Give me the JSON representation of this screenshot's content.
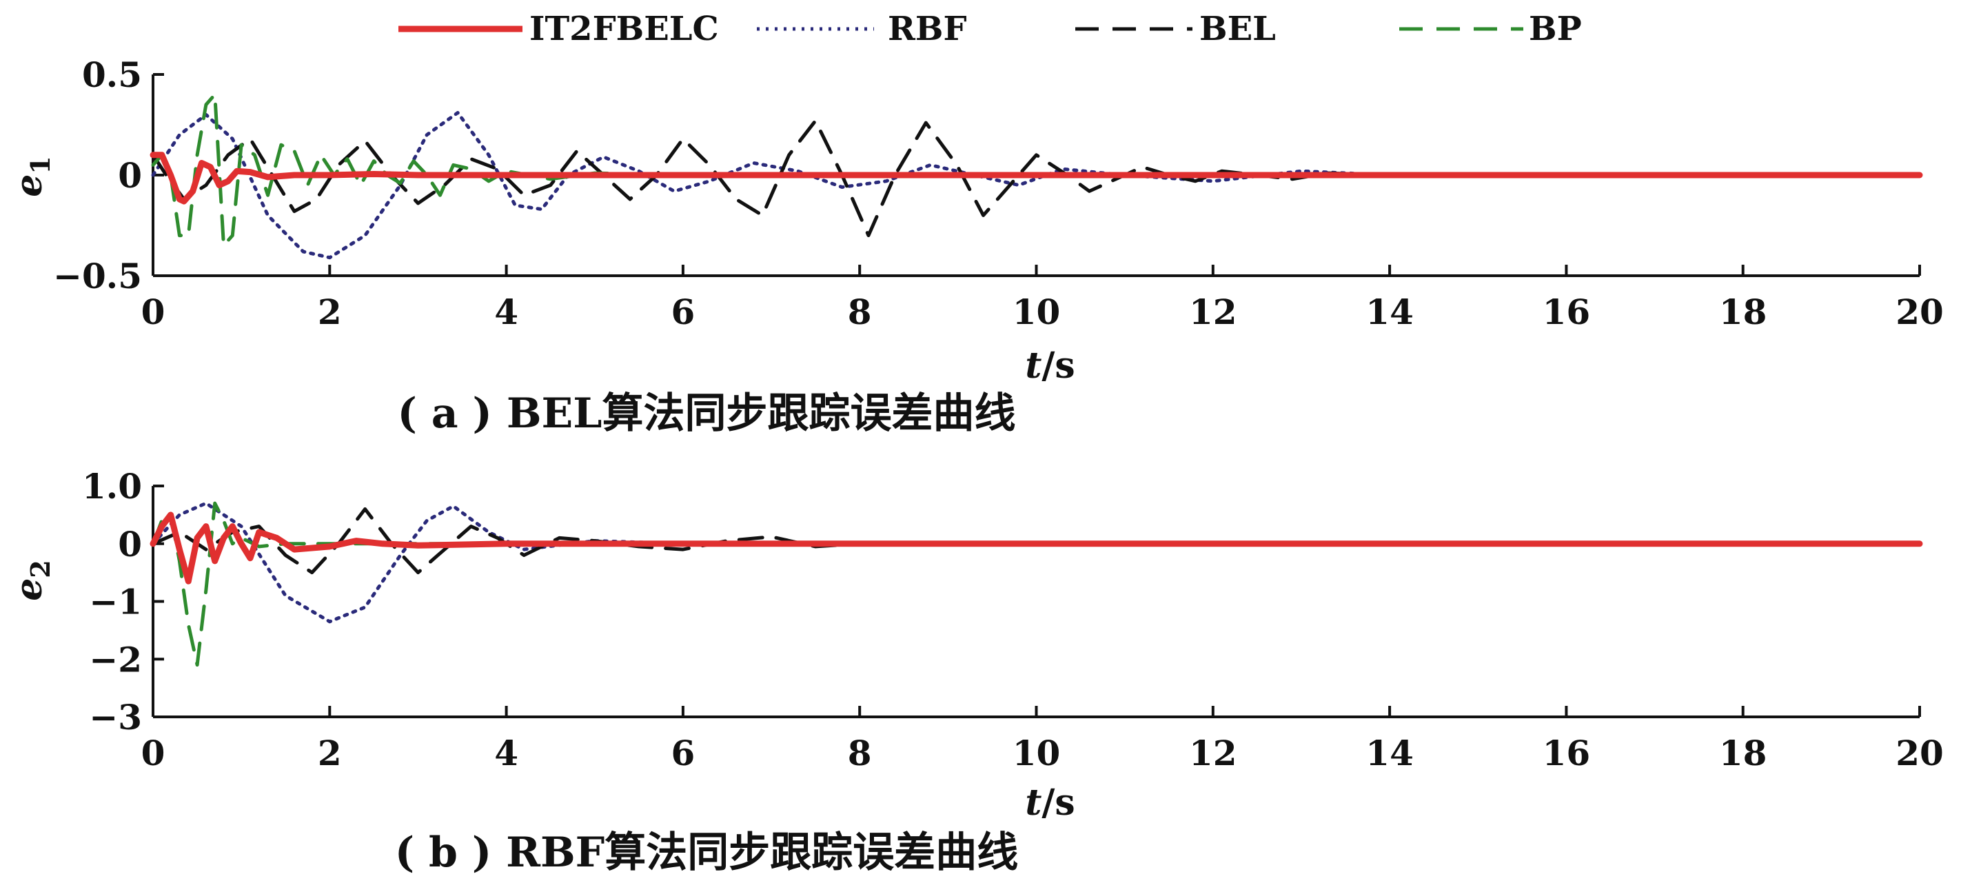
{
  "legend": {
    "items": [
      {
        "label": "IT2FBELC",
        "color": "#e03030",
        "dash": "solid"
      },
      {
        "label": "RBF",
        "color": "#2a2a7a",
        "dash": "dotted"
      },
      {
        "label": "BEL",
        "color": "#111111",
        "dash": "dashed"
      },
      {
        "label": "BP",
        "color": "#2e8b2e",
        "dash": "dashed"
      }
    ]
  },
  "chart_data": [
    {
      "type": "line",
      "caption": "( a ) BEL算法同步跟踪误差曲线",
      "xlabel": "t/s",
      "ylabel": "e1",
      "xlim": [
        0,
        20
      ],
      "ylim": [
        -0.5,
        0.5
      ],
      "xticks": [
        0,
        2,
        4,
        6,
        8,
        10,
        12,
        14,
        16,
        18,
        20
      ],
      "xtick_labels": [
        "0",
        "2",
        "4",
        "6",
        "8",
        "10",
        "12",
        "14",
        "16",
        "18",
        "20"
      ],
      "yticks": [
        -0.5,
        0,
        0.5
      ],
      "ytick_labels": [
        "−0.5",
        "0",
        "0.5"
      ],
      "grid": false,
      "series": [
        {
          "name": "IT2FBELC",
          "x": [
            0,
            0.1,
            0.2,
            0.3,
            0.35,
            0.45,
            0.55,
            0.65,
            0.75,
            0.85,
            0.95,
            1.1,
            1.3,
            1.6,
            2.0,
            2.5,
            3.0,
            4.0,
            6.0,
            10.0,
            20.0
          ],
          "y": [
            0.1,
            0.1,
            0.0,
            -0.12,
            -0.13,
            -0.08,
            0.06,
            0.04,
            -0.05,
            -0.03,
            0.02,
            0.015,
            -0.01,
            0.0,
            0.0,
            0.005,
            0.0,
            0.0,
            0.0,
            0.0,
            0.0
          ]
        },
        {
          "name": "RBF",
          "x": [
            0,
            0.3,
            0.6,
            0.9,
            1.3,
            1.7,
            2.0,
            2.4,
            2.8,
            3.1,
            3.45,
            3.8,
            4.1,
            4.4,
            4.7,
            5.1,
            5.5,
            5.9,
            6.3,
            6.8,
            7.3,
            7.8,
            8.3,
            8.8,
            9.3,
            9.8,
            10.3,
            11.0,
            12.0,
            13.0,
            14.0,
            15.0,
            20.0
          ],
          "y": [
            0.0,
            0.2,
            0.3,
            0.18,
            -0.2,
            -0.38,
            -0.41,
            -0.3,
            -0.05,
            0.2,
            0.31,
            0.1,
            -0.15,
            -0.17,
            0.0,
            0.09,
            0.02,
            -0.08,
            -0.03,
            0.06,
            0.02,
            -0.06,
            -0.03,
            0.05,
            0.0,
            -0.05,
            0.03,
            0.0,
            -0.03,
            0.02,
            0.0,
            0.0,
            0.0
          ]
        },
        {
          "name": "BEL",
          "x": [
            0,
            0.15,
            0.35,
            0.6,
            0.85,
            1.1,
            1.35,
            1.6,
            1.85,
            2.1,
            2.4,
            2.7,
            3.0,
            3.3,
            3.6,
            3.9,
            4.2,
            4.5,
            4.8,
            5.1,
            5.4,
            5.7,
            6.0,
            6.3,
            6.6,
            6.9,
            7.2,
            7.5,
            7.8,
            8.1,
            8.4,
            8.75,
            9.1,
            9.4,
            9.7,
            10.0,
            10.35,
            10.6,
            10.9,
            11.2,
            11.5,
            11.8,
            12.1,
            12.5,
            12.9,
            13.3,
            14.0,
            15.0,
            20.0
          ],
          "y": [
            0.1,
            0.0,
            -0.12,
            -0.05,
            0.1,
            0.18,
            0.0,
            -0.18,
            -0.12,
            0.05,
            0.17,
            0.0,
            -0.14,
            -0.05,
            0.08,
            0.03,
            -0.1,
            -0.05,
            0.12,
            0.0,
            -0.12,
            0.0,
            0.18,
            0.05,
            -0.12,
            -0.2,
            0.1,
            0.27,
            0.0,
            -0.3,
            0.0,
            0.26,
            0.05,
            -0.2,
            -0.05,
            0.1,
            0.0,
            -0.08,
            -0.02,
            0.04,
            0.0,
            -0.03,
            0.02,
            0.0,
            -0.02,
            0.01,
            0.0,
            0.0,
            0.0
          ]
        },
        {
          "name": "BP",
          "x": [
            0,
            0.1,
            0.2,
            0.3,
            0.4,
            0.5,
            0.6,
            0.7,
            0.8,
            0.9,
            1.0,
            1.15,
            1.3,
            1.45,
            1.6,
            1.75,
            1.9,
            2.05,
            2.2,
            2.35,
            2.5,
            2.65,
            2.8,
            2.95,
            3.1,
            3.25,
            3.4,
            3.6,
            3.8,
            4.0,
            4.5,
            5.0,
            6.0,
            8.0,
            20.0
          ],
          "y": [
            0.05,
            0.1,
            0.0,
            -0.3,
            -0.3,
            0.1,
            0.35,
            0.4,
            -0.35,
            -0.3,
            0.15,
            0.1,
            -0.1,
            0.15,
            0.12,
            -0.05,
            0.1,
            0.0,
            0.08,
            -0.05,
            0.07,
            0.0,
            -0.04,
            0.07,
            0.0,
            -0.1,
            0.05,
            0.03,
            -0.03,
            0.02,
            -0.02,
            0.01,
            0.0,
            0.0,
            0.0
          ]
        }
      ]
    },
    {
      "type": "line",
      "caption": "( b ) RBF算法同步跟踪误差曲线",
      "xlabel": "t/s",
      "ylabel": "e2",
      "xlim": [
        0,
        20
      ],
      "ylim": [
        -3,
        1
      ],
      "xticks": [
        0,
        2,
        4,
        6,
        8,
        10,
        12,
        14,
        16,
        18,
        20
      ],
      "xtick_labels": [
        "0",
        "2",
        "4",
        "6",
        "8",
        "10",
        "12",
        "14",
        "16",
        "18",
        "20"
      ],
      "yticks": [
        -3,
        -2,
        -1,
        0,
        1
      ],
      "ytick_labels": [
        "−3",
        "−2",
        "−1",
        "0",
        "1.0"
      ],
      "grid": false,
      "series": [
        {
          "name": "IT2FBELC",
          "x": [
            0,
            0.1,
            0.2,
            0.3,
            0.4,
            0.5,
            0.6,
            0.7,
            0.8,
            0.9,
            1.0,
            1.1,
            1.2,
            1.4,
            1.6,
            2.0,
            2.3,
            2.6,
            3.0,
            4.0,
            6.0,
            20.0
          ],
          "y": [
            0.0,
            0.3,
            0.5,
            -0.1,
            -0.65,
            0.1,
            0.3,
            -0.3,
            0.1,
            0.3,
            0.0,
            -0.25,
            0.2,
            0.1,
            -0.1,
            -0.05,
            0.05,
            0.0,
            -0.03,
            0.0,
            0.0,
            0.0
          ]
        },
        {
          "name": "RBF",
          "x": [
            0,
            0.3,
            0.6,
            1.0,
            1.5,
            2.0,
            2.4,
            2.8,
            3.1,
            3.4,
            3.8,
            4.2,
            5.0,
            6.0,
            20.0
          ],
          "y": [
            0.0,
            0.5,
            0.7,
            0.3,
            -0.9,
            -1.35,
            -1.1,
            -0.2,
            0.4,
            0.65,
            0.2,
            -0.1,
            0.05,
            0.0,
            0.0
          ]
        },
        {
          "name": "BEL",
          "x": [
            0,
            0.3,
            0.6,
            0.9,
            1.2,
            1.5,
            1.8,
            2.1,
            2.4,
            2.7,
            3.0,
            3.3,
            3.6,
            3.9,
            4.2,
            4.6,
            5.0,
            5.5,
            6.0,
            6.5,
            7.0,
            7.5,
            8.0,
            9.0,
            10.0,
            20.0
          ],
          "y": [
            0.0,
            0.2,
            -0.1,
            0.2,
            0.3,
            -0.2,
            -0.5,
            0.0,
            0.6,
            0.0,
            -0.5,
            -0.1,
            0.3,
            0.1,
            -0.2,
            0.1,
            0.05,
            -0.05,
            -0.1,
            0.05,
            0.12,
            -0.05,
            0.0,
            0.02,
            0.0,
            0.0
          ]
        },
        {
          "name": "BP",
          "x": [
            0,
            0.1,
            0.2,
            0.3,
            0.4,
            0.5,
            0.6,
            0.7,
            0.8,
            0.9,
            1.0,
            1.2,
            1.5,
            2.0,
            3.0,
            20.0
          ],
          "y": [
            0.0,
            0.4,
            0.5,
            -0.3,
            -1.4,
            -2.1,
            -0.8,
            0.7,
            0.4,
            0.0,
            0.1,
            -0.05,
            0.0,
            0.0,
            0.0,
            0.0
          ]
        }
      ]
    }
  ]
}
